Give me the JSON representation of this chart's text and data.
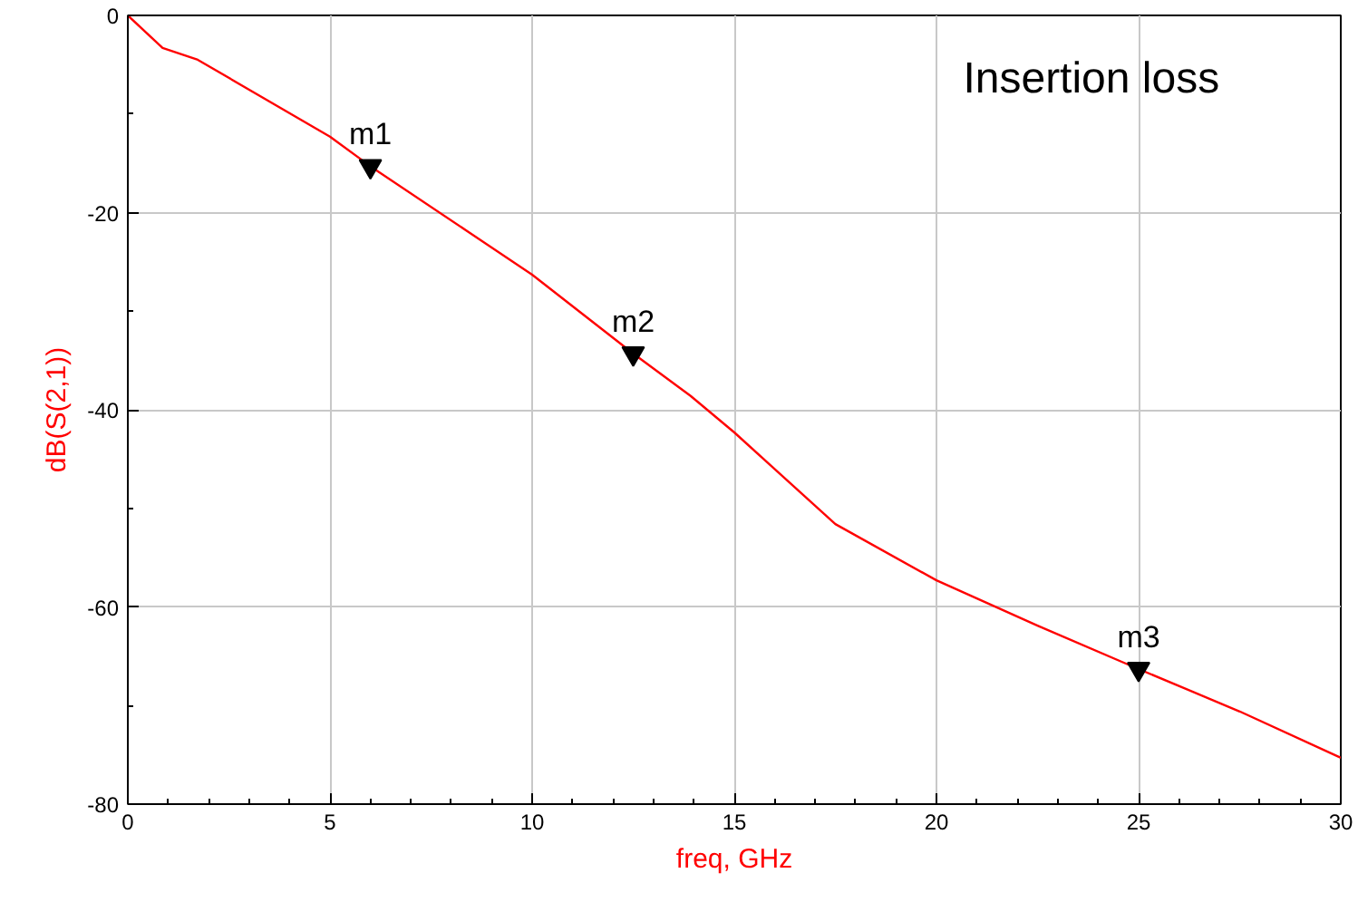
{
  "chart_data": {
    "type": "line",
    "title": "Insertion loss",
    "xlabel": "freq, GHz",
    "ylabel": "dB(S(2,1))",
    "x": [
      0,
      0.86,
      1.73,
      5,
      6,
      10,
      12.5,
      13.92,
      15,
      17.5,
      20,
      22.5,
      25,
      27.5,
      30
    ],
    "series": [
      {
        "color": "#ff0000",
        "values": [
          0,
          -3.3,
          -4.5,
          -12.3,
          -15.3,
          -26.3,
          -34.3,
          -38.6,
          -42.3,
          -51.6,
          -57.3,
          -61.9,
          -66.3,
          -70.6,
          -75.3
        ]
      }
    ],
    "xlim": [
      0,
      30
    ],
    "ylim": [
      -80,
      0
    ],
    "xticks": [
      0,
      5,
      10,
      15,
      20,
      25,
      30
    ],
    "yticks": [
      0,
      -20,
      -40,
      -60,
      -80
    ],
    "annotations": [
      {
        "text": "m1",
        "x": 6,
        "y": -15.3
      },
      {
        "text": "m2",
        "x": 12.5,
        "y": -34.3
      },
      {
        "text": "m3",
        "x": 25,
        "y": -66.3
      }
    ],
    "grid": true,
    "marker": "none",
    "line_style": "solid"
  }
}
